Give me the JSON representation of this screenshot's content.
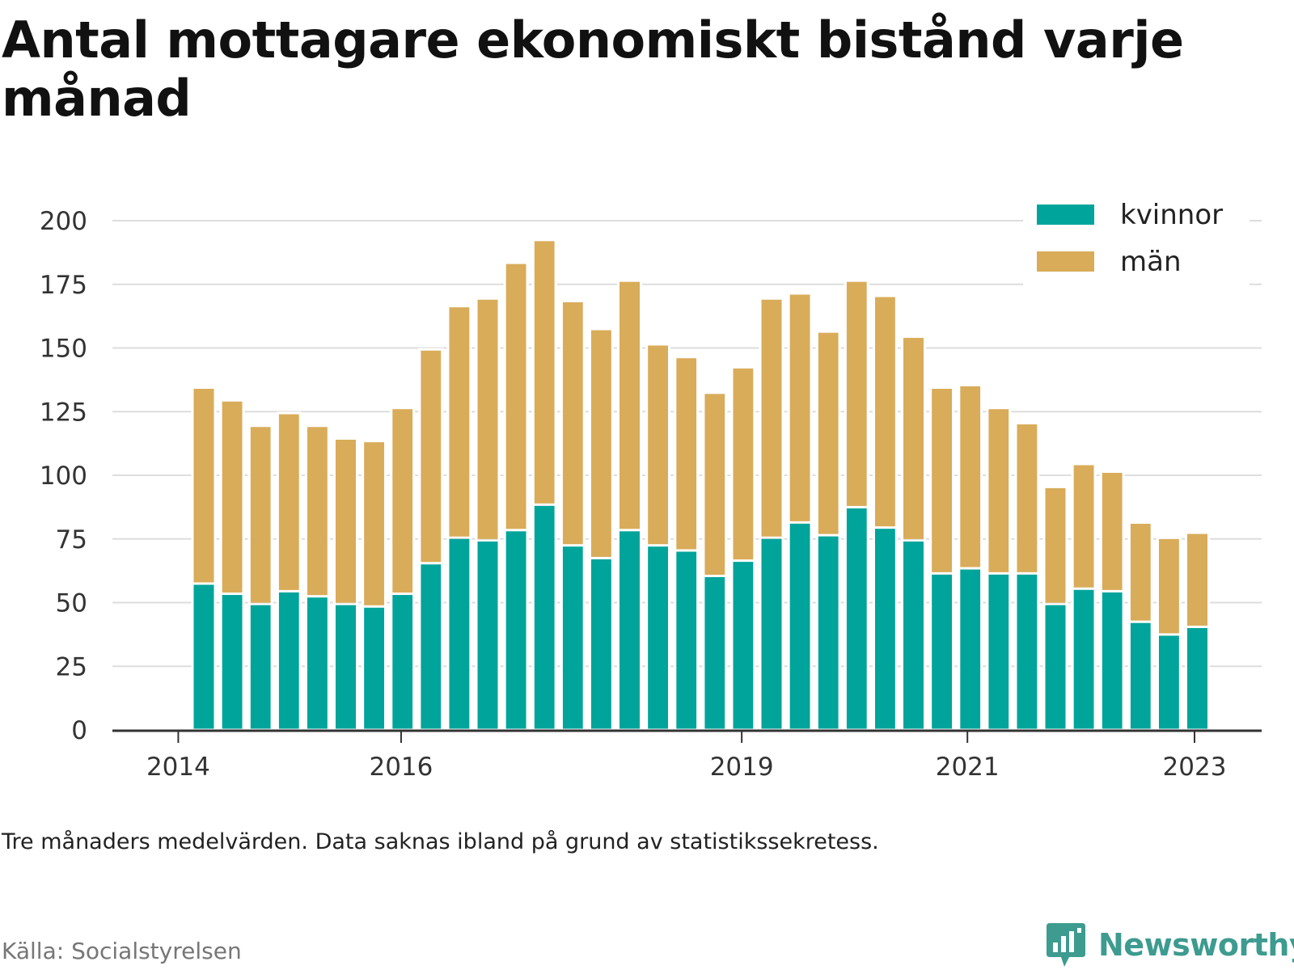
{
  "title": "Antal mottagare ekonomiskt bistånd varje månad",
  "note": "Tre månaders medelvärden. Data saknas ibland på grund av statistikssekretess.",
  "source": "Källa: Socialstyrelsen",
  "brand": "Newsworthy",
  "colors": {
    "kvinnor": "#00a49a",
    "man": "#d9ac5a",
    "grid": "#dddddd",
    "axis": "#333333",
    "brand": "#3d9b8f"
  },
  "icons": {
    "brand_logo": "newsworthy-chart-bubble-icon"
  },
  "chart_data": {
    "type": "bar",
    "stacked": true,
    "legend_position": "top-right",
    "grid": true,
    "ylim": [
      0,
      200
    ],
    "yticks": [
      "0",
      "25",
      "50",
      "75",
      "100",
      "125",
      "150",
      "175",
      "200"
    ],
    "xticks": [
      {
        "label": "2014",
        "bar_offset": -0.9
      },
      {
        "label": "2016",
        "bar_offset": 6.95
      },
      {
        "label": "2019",
        "bar_offset": 18.95
      },
      {
        "label": "2021",
        "bar_offset": 26.9
      },
      {
        "label": "2023",
        "bar_offset": 34.9
      }
    ],
    "series": [
      {
        "name": "kvinnor",
        "color": "#00a49a",
        "values": [
          57,
          53,
          49,
          54,
          52,
          49,
          48,
          53,
          65,
          75,
          74,
          78,
          88,
          72,
          67,
          78,
          72,
          70,
          60,
          66,
          75,
          81,
          76,
          87,
          79,
          74,
          61,
          63,
          61,
          61,
          49,
          55,
          54,
          42,
          37,
          40
        ]
      },
      {
        "name": "män",
        "color": "#d9ac5a",
        "values": [
          77,
          76,
          70,
          70,
          67,
          65,
          65,
          73,
          84,
          91,
          95,
          105,
          104,
          96,
          90,
          98,
          79,
          76,
          72,
          76,
          94,
          90,
          80,
          89,
          91,
          80,
          73,
          72,
          65,
          59,
          46,
          49,
          47,
          39,
          38,
          37
        ]
      }
    ]
  }
}
